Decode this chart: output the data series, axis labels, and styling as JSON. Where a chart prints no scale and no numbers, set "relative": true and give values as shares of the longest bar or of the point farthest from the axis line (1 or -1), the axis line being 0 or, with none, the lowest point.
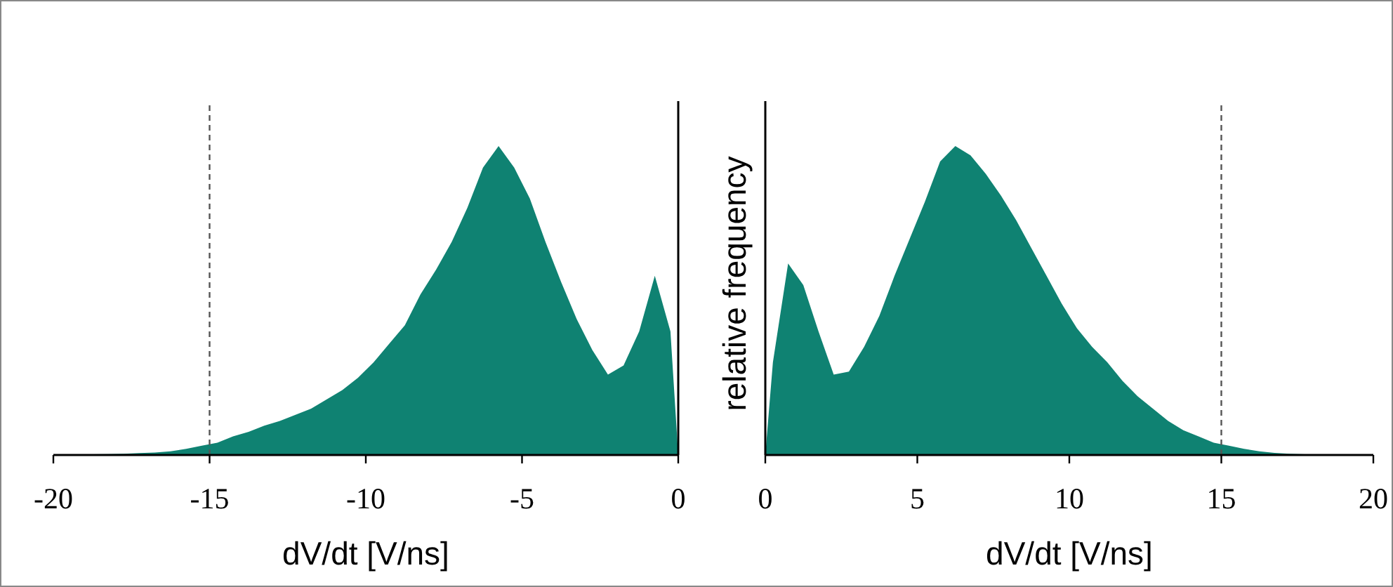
{
  "chart_data": [
    {
      "type": "area",
      "relative": true,
      "xlabel": "dV/dt [V/ns]",
      "xlim": [
        -20,
        0
      ],
      "xticks": [
        -20,
        -15,
        -10,
        -5,
        0
      ],
      "color": "#0f8272",
      "x": [
        -19.75,
        -19.25,
        -18.75,
        -18.25,
        -17.75,
        -17.25,
        -16.75,
        -16.25,
        -15.75,
        -15.25,
        -14.75,
        -14.25,
        -13.75,
        -13.25,
        -12.75,
        -12.25,
        -11.75,
        -11.25,
        -10.75,
        -10.25,
        -9.75,
        -9.25,
        -8.75,
        -8.25,
        -7.75,
        -7.25,
        -6.75,
        -6.25,
        -5.75,
        -5.25,
        -4.75,
        -4.25,
        -3.75,
        -3.25,
        -2.75,
        -2.25,
        -1.75,
        -1.25,
        -0.75,
        -0.25,
        0
      ],
      "values": [
        0,
        0,
        0.002,
        0.003,
        0.004,
        0.006,
        0.008,
        0.012,
        0.02,
        0.03,
        0.04,
        0.06,
        0.075,
        0.095,
        0.11,
        0.13,
        0.15,
        0.18,
        0.21,
        0.25,
        0.3,
        0.36,
        0.42,
        0.52,
        0.6,
        0.69,
        0.8,
        0.93,
        1,
        0.93,
        0.83,
        0.69,
        0.56,
        0.44,
        0.34,
        0.26,
        0.29,
        0.4,
        0.58,
        0.4,
        0
      ],
      "ref_lines": [
        {
          "axis": "x",
          "value": -15,
          "line_style": "dashed",
          "color": "#555555"
        }
      ]
    },
    {
      "type": "area",
      "relative": true,
      "xlabel": "dV/dt [V/ns]",
      "ylabel": "relative frequency",
      "xlim": [
        0,
        20
      ],
      "xticks": [
        0,
        5,
        10,
        15,
        20
      ],
      "color": "#0f8272",
      "x": [
        0,
        0.25,
        0.75,
        1.25,
        1.75,
        2.25,
        2.75,
        3.25,
        3.75,
        4.25,
        4.75,
        5.25,
        5.75,
        6.25,
        6.75,
        7.25,
        7.75,
        8.25,
        8.75,
        9.25,
        9.75,
        10.25,
        10.75,
        11.25,
        11.75,
        12.25,
        12.75,
        13.25,
        13.75,
        14.25,
        14.75,
        15.25,
        15.75,
        16.25,
        16.75,
        17.25,
        17.75,
        18.25,
        18.75,
        19.25,
        19.75
      ],
      "values": [
        0,
        0.3,
        0.62,
        0.55,
        0.4,
        0.26,
        0.27,
        0.35,
        0.45,
        0.58,
        0.7,
        0.82,
        0.95,
        1,
        0.97,
        0.91,
        0.84,
        0.76,
        0.67,
        0.58,
        0.49,
        0.41,
        0.35,
        0.3,
        0.24,
        0.19,
        0.15,
        0.11,
        0.08,
        0.06,
        0.04,
        0.03,
        0.02,
        0.012,
        0.007,
        0.004,
        0.002,
        0,
        0,
        0,
        0
      ],
      "ref_lines": [
        {
          "axis": "x",
          "value": 15,
          "line_style": "dashed",
          "color": "#555555"
        }
      ]
    }
  ]
}
